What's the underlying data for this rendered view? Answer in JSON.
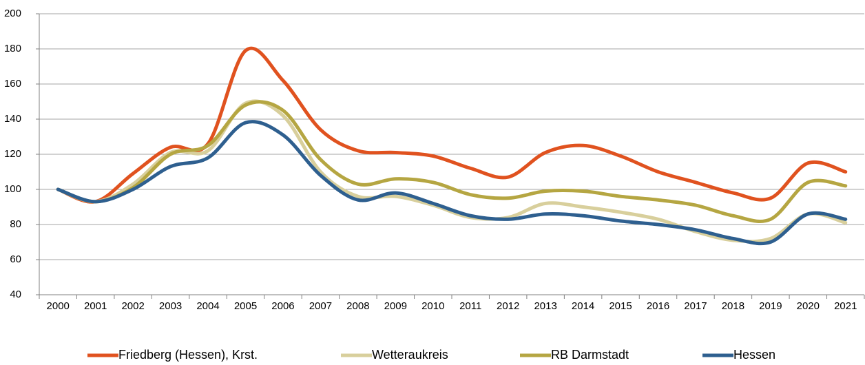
{
  "chart_data": {
    "type": "line",
    "categories": [
      "2000",
      "2001",
      "2002",
      "2003",
      "2004",
      "2005",
      "2006",
      "2007",
      "2008",
      "2009",
      "2010",
      "2011",
      "2012",
      "2013",
      "2014",
      "2015",
      "2016",
      "2017",
      "2018",
      "2019",
      "2020",
      "2021"
    ],
    "series": [
      {
        "name": "Friedberg (Hessen), Krst.",
        "color": "#e0521f",
        "values": [
          100,
          93,
          109,
          124,
          126,
          179,
          162,
          134,
          122,
          121,
          119,
          112,
          107,
          121,
          125,
          119,
          110,
          104,
          98,
          95,
          115,
          110
        ]
      },
      {
        "name": "Wetteraukreis",
        "color": "#d8cf9c",
        "values": [
          100,
          93,
          103,
          121,
          122,
          149,
          142,
          110,
          96,
          96,
          91,
          84,
          84,
          92,
          90,
          87,
          83,
          76,
          71,
          72,
          86,
          81
        ]
      },
      {
        "name": "RB Darmstadt",
        "color": "#b5a642",
        "values": [
          100,
          93,
          101,
          120,
          125,
          148,
          145,
          117,
          103,
          106,
          104,
          97,
          95,
          99,
          99,
          96,
          94,
          91,
          85,
          83,
          104,
          102
        ]
      },
      {
        "name": "Hessen",
        "color": "#2e5f8f",
        "values": [
          100,
          93,
          100,
          113,
          118,
          138,
          131,
          108,
          94,
          98,
          92,
          85,
          83,
          86,
          85,
          82,
          80,
          77,
          72,
          70,
          86,
          83
        ]
      }
    ],
    "ylim": [
      40,
      200
    ],
    "yticks": [
      40,
      60,
      80,
      100,
      120,
      140,
      160,
      180,
      200
    ],
    "grid": true,
    "legend": "bottom"
  }
}
